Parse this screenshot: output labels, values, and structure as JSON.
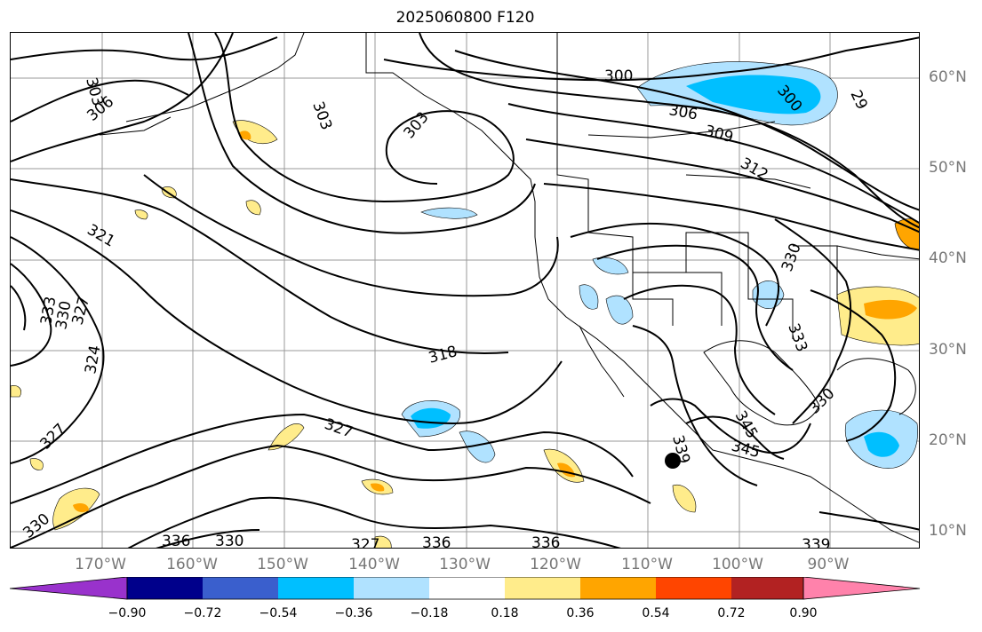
{
  "title": "2025060800 F120",
  "lat_labels": [
    "60°N",
    "50°N",
    "40°N",
    "30°N",
    "20°N",
    "10°N"
  ],
  "lon_labels": [
    "170°W",
    "160°W",
    "150°W",
    "140°W",
    "130°W",
    "120°W",
    "110°W",
    "100°W",
    "90°W"
  ],
  "contour_labels": [
    "303",
    "306",
    "303",
    "303",
    "300",
    "306",
    "309",
    "312",
    "300",
    "29",
    "321",
    "333",
    "330",
    "327",
    "324",
    "318",
    "327",
    "327",
    "333",
    "330",
    "345",
    "345",
    "339",
    "330",
    "336",
    "336",
    "336",
    "330",
    "339",
    "330",
    "327"
  ],
  "colorbar": {
    "tick_labels": [
      "−0.90",
      "−0.72",
      "−0.54",
      "−0.36",
      "−0.18",
      "0.18",
      "0.36",
      "0.54",
      "0.72",
      "0.90"
    ],
    "colors": [
      "#9932cc",
      "#00008b",
      "#3a5fcd",
      "#00bfff",
      "#b0e2ff",
      "#ffffff",
      "#ffec8b",
      "#ffa500",
      "#ff4500",
      "#b22222",
      "#ff82ab"
    ]
  },
  "marker": {
    "label": "storm-center",
    "lat": 17.7,
    "lon": -107.3
  }
}
